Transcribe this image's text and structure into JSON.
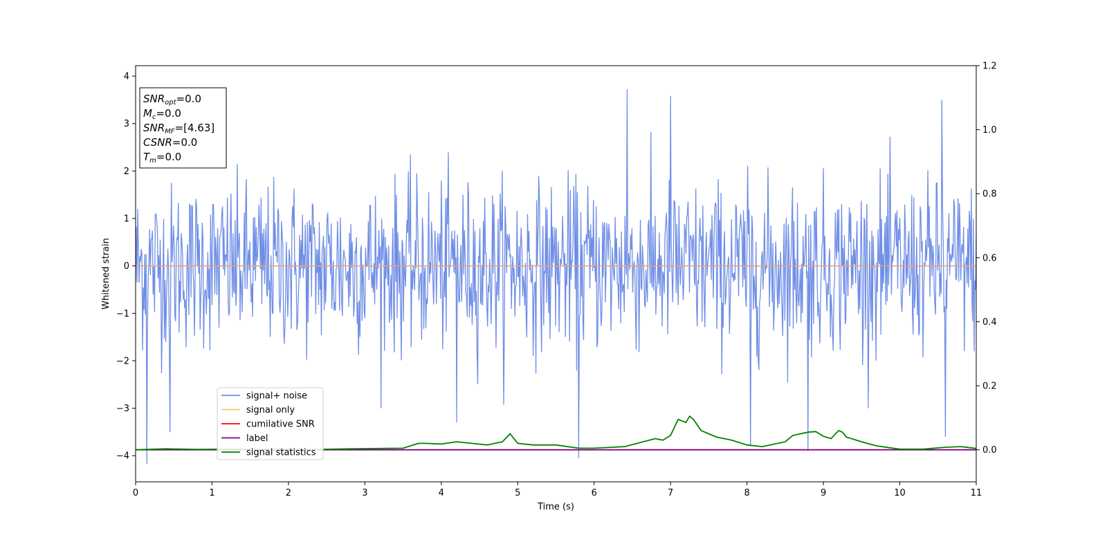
{
  "chart_data": {
    "type": "line",
    "xlabel": "Time (s)",
    "ylabel": "Whitened strain",
    "xlim": [
      0,
      11
    ],
    "ylim": [
      -4.55,
      4.22
    ],
    "y2lim": [
      -0.1,
      1.2
    ],
    "x_ticks": [
      0,
      1,
      2,
      3,
      4,
      5,
      6,
      7,
      8,
      9,
      10,
      11
    ],
    "y_ticks": [
      -4,
      -3,
      -2,
      -1,
      0,
      1,
      2,
      3,
      4
    ],
    "y2_ticks": [
      0.0,
      0.2,
      0.4,
      0.6,
      0.8,
      1.0,
      1.2
    ],
    "grid": false,
    "legend_position": "lower-left",
    "colors": {
      "signal_noise": "#6f8ee6",
      "signal_only": "#ffc266",
      "cumulative_snr": "#ff0000",
      "label": "#800080",
      "signal_statistics": "#008000",
      "zero_line": "#e3a37b"
    },
    "annotation": {
      "lines": [
        {
          "var": "SNR",
          "sub": "opt",
          "value": "=0.0"
        },
        {
          "var": "M",
          "sub": "c",
          "value": "=0.0"
        },
        {
          "var": "SNR",
          "sub": "MF",
          "value": "=[4.63]"
        },
        {
          "var": "CSNR",
          "sub": "",
          "value": "=0.0"
        },
        {
          "var": "T",
          "sub": "m",
          "value": "=0.0"
        }
      ]
    },
    "series": [
      {
        "name": "signal+ noise",
        "axis": "left",
        "sample_count": 1200,
        "mean": 0.0,
        "std": 0.75,
        "peaks": [
          [
            0.15,
            -4.17
          ],
          [
            0.45,
            -3.5
          ],
          [
            6.43,
            3.72
          ],
          [
            5.8,
            -4.05
          ],
          [
            7.0,
            3.58
          ],
          [
            10.55,
            3.5
          ],
          [
            4.2,
            -3.3
          ],
          [
            8.05,
            -3.8
          ],
          [
            8.8,
            -3.9
          ],
          [
            10.6,
            -3.6
          ]
        ]
      },
      {
        "name": "signal only",
        "axis": "left",
        "x": [
          0,
          11
        ],
        "y": [
          0,
          0
        ]
      },
      {
        "name": "cumilative SNR",
        "axis": "right",
        "x": [
          0,
          11
        ],
        "y": [
          0,
          0
        ]
      },
      {
        "name": "label",
        "axis": "right",
        "x": [
          0,
          11
        ],
        "y": [
          0,
          0
        ]
      },
      {
        "name": "signal statistics",
        "axis": "right",
        "x": [
          0,
          0.4,
          0.8,
          1.2,
          1.6,
          2.0,
          2.4,
          2.8,
          3.2,
          3.5,
          3.7,
          3.8,
          4.0,
          4.2,
          4.4,
          4.6,
          4.8,
          4.9,
          5.0,
          5.2,
          5.5,
          5.8,
          6.0,
          6.4,
          6.8,
          6.9,
          7.0,
          7.1,
          7.2,
          7.25,
          7.3,
          7.4,
          7.6,
          7.8,
          8.0,
          8.2,
          8.5,
          8.6,
          8.7,
          8.8,
          8.9,
          9.0,
          9.1,
          9.2,
          9.25,
          9.3,
          9.5,
          9.7,
          10.0,
          10.3,
          10.6,
          10.8,
          11.0
        ],
        "y": [
          0.0,
          0.003,
          0.001,
          0.002,
          0.001,
          0.002,
          0.001,
          0.003,
          0.004,
          0.005,
          0.02,
          0.02,
          0.018,
          0.025,
          0.02,
          0.015,
          0.025,
          0.05,
          0.02,
          0.015,
          0.015,
          0.005,
          0.005,
          0.01,
          0.035,
          0.03,
          0.045,
          0.095,
          0.085,
          0.105,
          0.095,
          0.06,
          0.04,
          0.03,
          0.015,
          0.01,
          0.025,
          0.045,
          0.05,
          0.055,
          0.057,
          0.042,
          0.035,
          0.06,
          0.055,
          0.04,
          0.025,
          0.012,
          0.002,
          0.002,
          0.008,
          0.01,
          0.004
        ]
      }
    ]
  }
}
